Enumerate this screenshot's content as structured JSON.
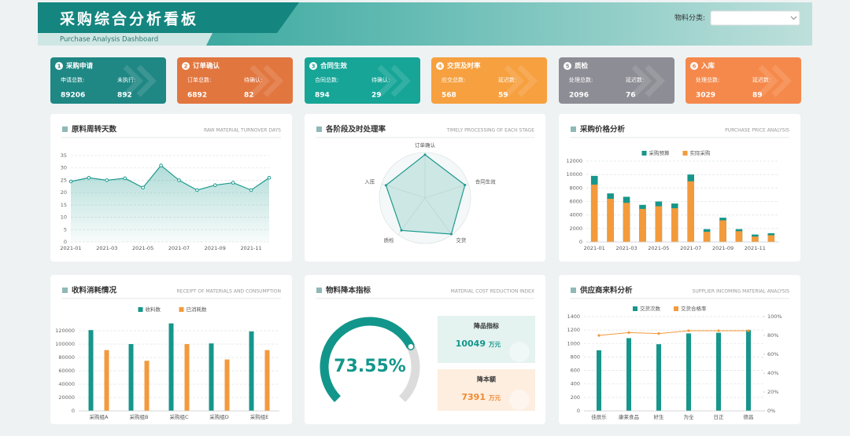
{
  "header": {
    "title": "采购综合分析看板",
    "subtitle": "Purchase Analysis Dashboard",
    "filter_label": "物料分类:"
  },
  "kpis": [
    {
      "no": 1,
      "title": "采购申请",
      "color": "#1f8784",
      "items": [
        {
          "label": "申请总数:",
          "value": 89206
        },
        {
          "label": "未执行:",
          "value": 892
        }
      ]
    },
    {
      "no": 2,
      "title": "订单确认",
      "color": "#e2763f",
      "items": [
        {
          "label": "订单总数:",
          "value": 6892
        },
        {
          "label": "待确认:",
          "value": 82
        }
      ]
    },
    {
      "no": 3,
      "title": "合同生效",
      "color": "#16a597",
      "items": [
        {
          "label": "合同总数:",
          "value": 894
        },
        {
          "label": "待确认:",
          "value": 29
        }
      ]
    },
    {
      "no": 4,
      "title": "交货及时率",
      "color": "#f6a03f",
      "items": [
        {
          "label": "应交总数:",
          "value": 568
        },
        {
          "label": "延迟数:",
          "value": 59
        }
      ]
    },
    {
      "no": 5,
      "title": "质检",
      "color": "#8d8d95",
      "items": [
        {
          "label": "处理总数:",
          "value": 2096
        },
        {
          "label": "延迟数:",
          "value": 76
        }
      ]
    },
    {
      "no": 6,
      "title": "入库",
      "color": "#f5894b",
      "items": [
        {
          "label": "处理总数:",
          "value": 3029
        },
        {
          "label": "延迟数:",
          "value": 89
        }
      ]
    }
  ],
  "chart_data": [
    {
      "type": "area",
      "title": "原料周转天数",
      "subtitle": "RAW MATERIAL TURNOVER DAYS",
      "color": "#1c9a8e",
      "categories": [
        "2021-01",
        null,
        "2021-03",
        null,
        "2021-05",
        null,
        "2021-07",
        null,
        "2021-09",
        null,
        "2021-11",
        null
      ],
      "values": [
        24.5,
        26,
        25,
        25.8,
        22,
        31,
        25,
        21,
        23,
        24,
        21,
        26
      ],
      "ylim": [
        0,
        35
      ],
      "yticks": [
        0,
        5,
        10,
        15,
        20,
        25,
        30,
        35
      ],
      "grid": true
    },
    {
      "type": "radar",
      "title": "各阶段及时处理率",
      "subtitle": "TIMELY PROCESSING OF EACH STAGE",
      "color": "#1c9a8e",
      "categories": [
        "订单确认",
        "合同生效",
        "交货",
        "质检",
        "入库"
      ],
      "values": [
        95,
        92,
        98,
        88,
        90
      ],
      "rlim": [
        0,
        100
      ]
    },
    {
      "type": "bar",
      "mode": "overlay",
      "title": "采购价格分析",
      "subtitle": "PURCHASE PRICE ANALYSIS",
      "categories": [
        "2021-01",
        null,
        "2021-03",
        null,
        "2021-05",
        null,
        "2021-07",
        null,
        "2021-09",
        null,
        "2021-11",
        null
      ],
      "series": [
        {
          "name": "采购预算",
          "color": "#17968b",
          "values": [
            9800,
            7200,
            6700,
            5500,
            6000,
            5700,
            10000,
            1900,
            3600,
            1900,
            1100,
            1300
          ]
        },
        {
          "name": "实际采购",
          "color": "#f39a3c",
          "values": [
            8500,
            6400,
            5800,
            4900,
            5300,
            5000,
            9000,
            1500,
            3200,
            1600,
            800,
            1000
          ]
        }
      ],
      "ylim": [
        0,
        12000
      ],
      "yticks": [
        0,
        2000,
        4000,
        6000,
        8000,
        10000,
        12000
      ],
      "grid": true
    },
    {
      "type": "bar",
      "mode": "group",
      "title": "收料消耗情况",
      "subtitle": "RECEIPT OF MATERIALS AND CONSUMPTION",
      "categories": [
        "采购组A",
        "采购组B",
        "采购组C",
        "采购组D",
        "采购组E"
      ],
      "series": [
        {
          "name": "收料数",
          "color": "#17968b",
          "values": [
            121000,
            100000,
            131000,
            101000,
            119000
          ]
        },
        {
          "name": "已消耗数",
          "color": "#f39a3c",
          "values": [
            91000,
            75000,
            100000,
            77000,
            91000
          ]
        }
      ],
      "ylim": [
        0,
        140000
      ],
      "yticks": [
        0,
        20000,
        40000,
        60000,
        80000,
        100000,
        120000
      ],
      "grid": true
    },
    {
      "type": "gauge",
      "title": "物料降本指标",
      "subtitle": "MATERIAL COST REDUCTION INDEX",
      "color": "#12968b",
      "values": [
        73.55
      ],
      "value_labels": [
        "73.55%"
      ],
      "ylim": [
        0,
        100
      ],
      "cards": [
        {
          "label": "降品指标",
          "value": 10049,
          "unit": "万元",
          "color": "#12968b"
        },
        {
          "label": "降本额",
          "value": 7391,
          "unit": "万元",
          "color": "#f0892e"
        }
      ]
    },
    {
      "type": "combo",
      "title": "供应商来料分析",
      "subtitle": "SUPPLIER INCOMING MATERIAL ANALYSIS",
      "categories": [
        "佳辰乐",
        "康莱食品",
        "好生",
        "为全",
        "日正",
        "德昌"
      ],
      "series": [
        {
          "name": "交货次数",
          "color": "#17968b",
          "values": [
            900,
            1080,
            990,
            1150,
            1160,
            1200
          ]
        },
        {
          "name": "交货合格率",
          "color": "#f39a3c",
          "axis": "y2",
          "values": [
            80,
            83,
            82,
            85,
            85,
            85
          ]
        }
      ],
      "ylim": [
        0,
        1400
      ],
      "yticks": [
        0,
        200,
        400,
        600,
        800,
        1000,
        1200,
        1400
      ],
      "y2lim": [
        0,
        100
      ],
      "y2ticks": [
        {
          "value": 0,
          "label": "0%"
        },
        {
          "value": 20,
          "label": "20%"
        },
        {
          "value": 40,
          "label": "40%"
        },
        {
          "value": 60,
          "label": "60%"
        },
        {
          "value": 80,
          "label": "80%"
        },
        {
          "value": 100,
          "label": "100%"
        }
      ],
      "grid": true
    }
  ]
}
